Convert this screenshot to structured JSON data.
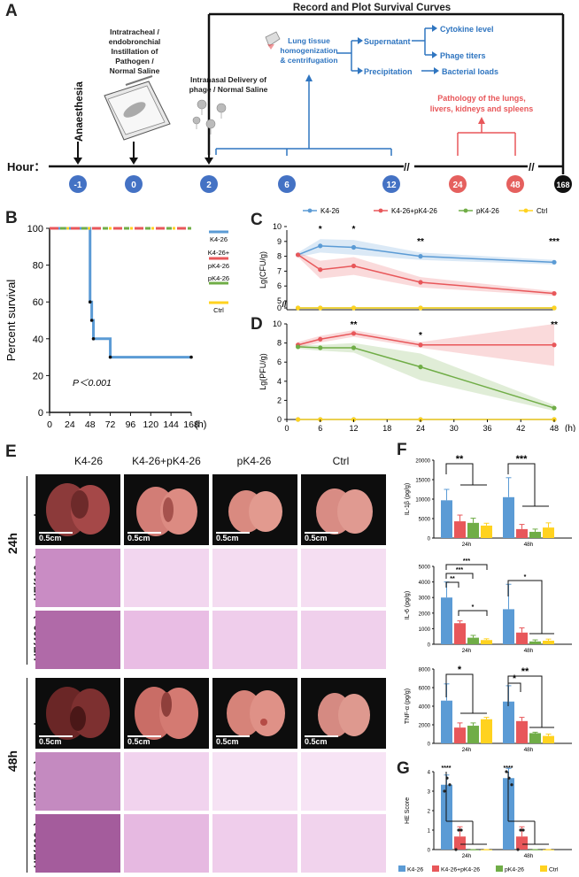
{
  "panel_letters": {
    "a": "A",
    "b": "B",
    "c": "C",
    "d": "D",
    "e": "E",
    "f": "F",
    "g": "G"
  },
  "panel_a": {
    "title": "Record and Plot Survival Curves",
    "hour_label": "Hour：",
    "hours": [
      "-1",
      "0",
      "2",
      "6",
      "12",
      "24",
      "48",
      "168"
    ],
    "anaesthesia": "Anaesthesia",
    "instillation": [
      "Intratracheal /",
      "endobronchial",
      "Instillation of",
      "Pathogen /",
      "Normal Saline"
    ],
    "intranasal": [
      "Intranasal Delivery of",
      "phage / Normal Saline"
    ],
    "homogenization": [
      "Lung tissue",
      "homogenization",
      "& centrifugation"
    ],
    "supernatant": "Supernatant",
    "precipitation": "Precipitation",
    "cytokine": "Cytokine level",
    "phage_titers": "Phage titers",
    "bacterial_loads": "Bacterial loads",
    "pathology": [
      "Pathology of the lungs,",
      "livers, kidneys and spleens"
    ],
    "colors": {
      "blue": "#2f75c0",
      "red": "#e8575a",
      "node_blue": "#4472c4",
      "node_red": "#e5605e"
    }
  },
  "chart_data": [
    {
      "id": "B",
      "type": "line",
      "title": "",
      "xlabel": "(h)",
      "ylabel": "Percent survival",
      "x_ticks": [
        "0",
        "24",
        "48",
        "72",
        "96",
        "120",
        "144",
        "168"
      ],
      "y_ticks": [
        "0",
        "20",
        "40",
        "60",
        "80",
        "100"
      ],
      "xlim": [
        0,
        168
      ],
      "ylim": [
        0,
        100
      ],
      "annotation": "P＜0.001",
      "legend": [
        "K4-26",
        "K4-26+ pK4-26",
        "pK4-26",
        "Ctrl"
      ],
      "series": [
        {
          "name": "K4-26",
          "color": "#5b9bd5",
          "x": [
            0,
            48,
            48,
            50,
            50,
            52,
            52,
            72,
            72,
            168
          ],
          "y": [
            100,
            100,
            60,
            60,
            50,
            50,
            40,
            40,
            30,
            30
          ]
        },
        {
          "name": "K4-26+pK4-26",
          "color": "#e8575a",
          "x": [
            0,
            168
          ],
          "y": [
            100,
            100
          ]
        },
        {
          "name": "pK4-26",
          "color": "#70ad47",
          "x": [
            0,
            168
          ],
          "y": [
            100,
            100
          ]
        },
        {
          "name": "Ctrl",
          "color": "#ffd21f",
          "x": [
            0,
            168
          ],
          "y": [
            100,
            100
          ]
        }
      ]
    },
    {
      "id": "C",
      "type": "line",
      "xlabel": "",
      "ylabel": "Lg(CFU/g)",
      "legend": [
        "K4-26",
        "K4-26+pK4-26",
        "pK4-26",
        "Ctrl"
      ],
      "y_ticks": [
        "0",
        "5",
        "6",
        "7",
        "8",
        "9",
        "10"
      ],
      "significance": [
        {
          "x": 6,
          "label": "*"
        },
        {
          "x": 12,
          "label": "*"
        },
        {
          "x": 24,
          "label": "**"
        },
        {
          "x": 48,
          "label": "***"
        }
      ],
      "series": [
        {
          "name": "K4-26",
          "color": "#5b9bd5",
          "x": [
            2,
            6,
            12,
            24,
            48
          ],
          "y": [
            8.1,
            8.7,
            8.6,
            8.0,
            7.6
          ]
        },
        {
          "name": "K4-26+pK4-26",
          "color": "#e8575a",
          "x": [
            2,
            6,
            12,
            24,
            48
          ],
          "y": [
            8.1,
            7.1,
            7.35,
            6.25,
            5.5
          ]
        },
        {
          "name": "pK4-26",
          "color": "#70ad47",
          "x": [
            2,
            6,
            12,
            24,
            48
          ],
          "y": [
            0,
            0,
            0,
            0,
            0
          ]
        },
        {
          "name": "Ctrl",
          "color": "#ffd21f",
          "x": [
            2,
            6,
            12,
            24,
            48
          ],
          "y": [
            0,
            0,
            0,
            0,
            0
          ]
        }
      ]
    },
    {
      "id": "D",
      "type": "line",
      "xlabel": "(h)",
      "ylabel": "Lg(PFU/g)",
      "x_ticks": [
        "0",
        "6",
        "12",
        "18",
        "24",
        "30",
        "36",
        "42",
        "48"
      ],
      "y_ticks": [
        "0",
        "2",
        "4",
        "6",
        "8",
        "10"
      ],
      "xlim": [
        0,
        48
      ],
      "ylim": [
        0,
        10
      ],
      "significance": [
        {
          "x": 12,
          "label": "**"
        },
        {
          "x": 24,
          "label": "*"
        },
        {
          "x": 48,
          "label": "**"
        }
      ],
      "series": [
        {
          "name": "K4-26",
          "color": "#5b9bd5",
          "x": [
            2,
            6,
            12,
            24,
            48
          ],
          "y": [
            0,
            0,
            0,
            0,
            0
          ]
        },
        {
          "name": "K4-26+pK4-26",
          "color": "#e8575a",
          "x": [
            2,
            6,
            12,
            24,
            48
          ],
          "y": [
            7.8,
            8.4,
            9.0,
            7.8,
            7.8
          ]
        },
        {
          "name": "pK4-26",
          "color": "#70ad47",
          "x": [
            2,
            6,
            12,
            24,
            48
          ],
          "y": [
            7.6,
            7.5,
            7.5,
            5.5,
            1.2
          ]
        },
        {
          "name": "Ctrl",
          "color": "#ffd21f",
          "x": [
            2,
            6,
            12,
            24,
            48
          ],
          "y": [
            0,
            0,
            0,
            0,
            0
          ]
        }
      ]
    },
    {
      "id": "F1",
      "type": "bar",
      "ylabel": "IL-1β (pg/g)",
      "y_ticks": [
        "0",
        "5000",
        "10000",
        "15000",
        "20000"
      ],
      "ylim": [
        0,
        20000
      ],
      "categories": [
        "24h",
        "48h"
      ],
      "significance": [
        "**",
        "***"
      ],
      "series": [
        {
          "name": "K4-26",
          "values": [
            9700,
            10500
          ]
        },
        {
          "name": "K4-26+pK4-26",
          "values": [
            4300,
            2300
          ]
        },
        {
          "name": "pK4-26",
          "values": [
            3900,
            1600
          ]
        },
        {
          "name": "Ctrl",
          "values": [
            3200,
            2700
          ]
        }
      ]
    },
    {
      "id": "F2",
      "type": "bar",
      "ylabel": "IL-6 (pg/g)",
      "y_ticks": [
        "0",
        "1000",
        "2000",
        "3000",
        "4000",
        "5000"
      ],
      "ylim": [
        0,
        5000
      ],
      "categories": [
        "24h",
        "48h"
      ],
      "significance": [
        "**",
        "***",
        "***",
        "*",
        "*"
      ],
      "series": [
        {
          "name": "K4-26",
          "values": [
            3000,
            2250
          ]
        },
        {
          "name": "K4-26+pK4-26",
          "values": [
            1350,
            750
          ]
        },
        {
          "name": "pK4-26",
          "values": [
            420,
            180
          ]
        },
        {
          "name": "Ctrl",
          "values": [
            270,
            230
          ]
        }
      ]
    },
    {
      "id": "F3",
      "type": "bar",
      "ylabel": "TNF-α (pg/g)",
      "y_ticks": [
        "0",
        "2000",
        "4000",
        "6000",
        "8000"
      ],
      "ylim": [
        0,
        8000
      ],
      "categories": [
        "24h",
        "48h"
      ],
      "significance": [
        "*",
        "*",
        "**"
      ],
      "series": [
        {
          "name": "K4-26",
          "values": [
            4600,
            4500
          ]
        },
        {
          "name": "K4-26+pK4-26",
          "values": [
            1700,
            2400
          ]
        },
        {
          "name": "pK4-26",
          "values": [
            1900,
            1100
          ]
        },
        {
          "name": "Ctrl",
          "values": [
            2600,
            800
          ]
        }
      ]
    },
    {
      "id": "G",
      "type": "bar",
      "ylabel": "HE Score",
      "y_ticks": [
        "0",
        "1",
        "2",
        "3",
        "4"
      ],
      "ylim": [
        0,
        4
      ],
      "categories": [
        "24h",
        "48h"
      ],
      "significance": [
        "****",
        "****"
      ],
      "legend": [
        "K4-26",
        "K4-26+pK4-26",
        "pK4-26",
        "Ctrl"
      ],
      "series": [
        {
          "name": "K4-26",
          "values": [
            3.33,
            3.67
          ]
        },
        {
          "name": "K4-26+pK4-26",
          "values": [
            0.67,
            0.67
          ]
        },
        {
          "name": "pK4-26",
          "values": [
            0,
            0
          ]
        },
        {
          "name": "Ctrl",
          "values": [
            0,
            0
          ]
        }
      ]
    }
  ],
  "panel_e": {
    "columns": [
      "K4-26",
      "K4-26+pK4-26",
      "pK4-26",
      "Ctrl"
    ],
    "time_24": "24h",
    "time_48": "48h",
    "rows": [
      "Lung",
      "HE(100×)",
      "HE(400×)"
    ],
    "scale": "0.5cm"
  },
  "palette": {
    "K4-26": "#5b9bd5",
    "K4-26+pK4-26": "#e8575a",
    "pK4-26": "#70ad47",
    "Ctrl": "#ffd21f"
  }
}
